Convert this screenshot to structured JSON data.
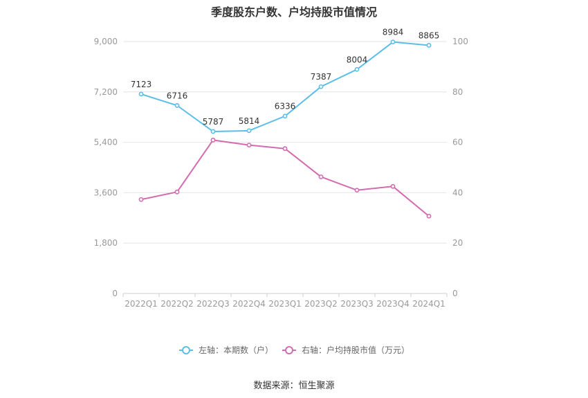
{
  "chart_data": {
    "type": "line",
    "title": "季度股东户数、户均持股市值情况",
    "categories": [
      "2022Q1",
      "2022Q2",
      "2022Q3",
      "2022Q4",
      "2023Q1",
      "2023Q2",
      "2023Q3",
      "2023Q4",
      "2024Q1"
    ],
    "left_axis": {
      "ylim": [
        0,
        9000
      ],
      "ticks": [
        "0",
        "1,800",
        "3,600",
        "5,400",
        "7,200",
        "9,000"
      ]
    },
    "right_axis": {
      "ylim": [
        0,
        100
      ],
      "ticks": [
        "0",
        "20",
        "40",
        "60",
        "80",
        "100"
      ]
    },
    "series": [
      {
        "name": "左轴：本期数（户）",
        "axis": "left",
        "color": "#5bbde9",
        "values": [
          7123,
          6716,
          5787,
          5814,
          6336,
          7387,
          8004,
          8984,
          8865
        ],
        "labels": [
          "7123",
          "6716",
          "5787",
          "5814",
          "6336",
          "7387",
          "8004",
          "8984",
          "8865"
        ]
      },
      {
        "name": "右轴：户均持股市值（万元）",
        "axis": "right",
        "color": "#d36bb0",
        "values": [
          37.3,
          40.3,
          60.9,
          58.9,
          57.5,
          46.3,
          41.0,
          42.5,
          30.7
        ]
      }
    ],
    "grid": true,
    "legend_position": "bottom"
  },
  "source": "数据来源：恒生聚源"
}
